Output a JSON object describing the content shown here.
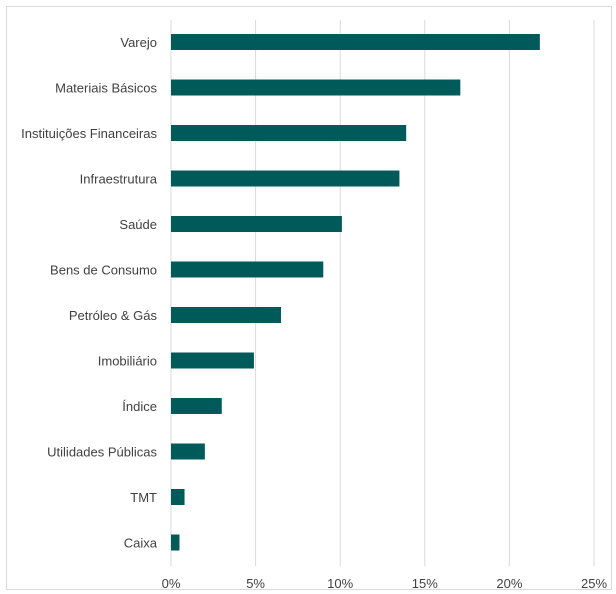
{
  "chart_data": {
    "type": "bar",
    "orientation": "horizontal",
    "categories": [
      "Varejo",
      "Materiais Básicos",
      "Instituições Financeiras",
      "Infraestrutura",
      "Saúde",
      "Bens de Consumo",
      "Petróleo & Gás",
      "Imobiliário",
      "Índice",
      "Utilidades Públicas",
      "TMT",
      "Caixa"
    ],
    "values": [
      21.8,
      17.1,
      13.9,
      13.5,
      10.1,
      9.0,
      6.5,
      4.9,
      3.0,
      2.0,
      0.8,
      0.5
    ],
    "xlim": [
      0,
      25
    ],
    "x_ticks": [
      0,
      5,
      10,
      15,
      20,
      25
    ],
    "x_tick_labels": [
      "0%",
      "5%",
      "10%",
      "15%",
      "20%",
      "25%"
    ],
    "grid": "vertical",
    "legend": "none",
    "title": "",
    "xlabel": "",
    "ylabel": "",
    "bar_color": "#005a5a",
    "grid_color": "#d9d9d9"
  }
}
